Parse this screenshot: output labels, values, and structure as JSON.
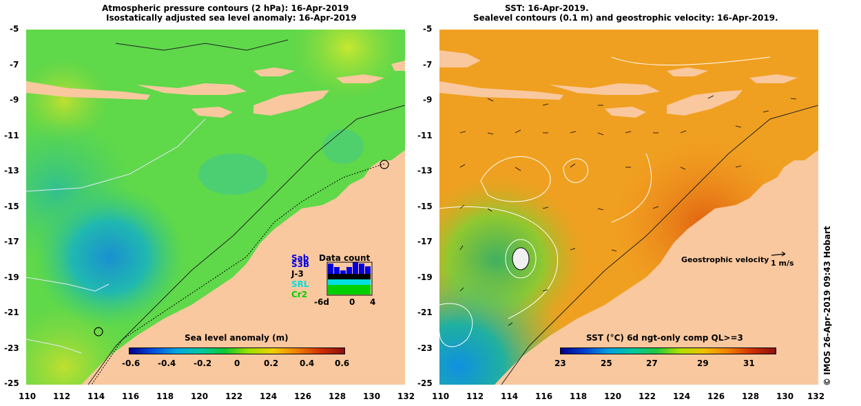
{
  "left_panel": {
    "title_line1": "Atmospheric pressure contours (2 hPa): 16-Apr-2019",
    "title_line2": "Isostatically adjusted sea level anomaly: 16-Apr-2019",
    "colorbar_label": "Sea level anomaly (m)",
    "colorbar_ticks": [
      "-0.6",
      "-0.4",
      "-0.2",
      "0",
      "0.2",
      "0.4",
      "0.6"
    ],
    "colorbar_colors": [
      "#00008b",
      "#0050e0",
      "#00a8e0",
      "#00c8a0",
      "#10c830",
      "#a0e000",
      "#f0d000",
      "#f08000",
      "#d03000",
      "#8b1010"
    ],
    "data_count": {
      "title": "Data count",
      "satellites": [
        "Sab",
        "S3B",
        "J-3",
        "SRL",
        "Cr2"
      ],
      "satellite_colors": [
        "#0000dd",
        "#0000dd",
        "#000000",
        "#00e0e0",
        "#00d000"
      ],
      "axis_labels": [
        "-6d",
        "0",
        "4"
      ]
    }
  },
  "right_panel": {
    "title_line1": "SST: 16-Apr-2019.",
    "title_line2": "Sealevel contours (0.1 m) and geostrophic velocity: 16-Apr-2019.",
    "colorbar_label": "SST (°C) 6d ngt-only comp QL>=3",
    "colorbar_ticks": [
      "23",
      "25",
      "27",
      "29",
      "31"
    ],
    "colorbar_colors": [
      "#00008b",
      "#0040d0",
      "#00a0e0",
      "#00c8a0",
      "#20c840",
      "#b0e000",
      "#f0c000",
      "#f08000",
      "#d03000",
      "#8b1010"
    ],
    "velocity_label": "Geostrophic velocity",
    "velocity_scale": "1 m/s",
    "credit": "© IMOS 26-Apr-2019 09:43 Hobart"
  },
  "axes": {
    "y_ticks": [
      "-5",
      "-7",
      "-9",
      "-11",
      "-13",
      "-15",
      "-17",
      "-19",
      "-21",
      "-23",
      "-25"
    ],
    "x_ticks": [
      "110",
      "112",
      "114",
      "116",
      "118",
      "120",
      "122",
      "124",
      "126",
      "128",
      "130",
      "132"
    ]
  },
  "colors": {
    "land": "#f9c89f",
    "ocean_left": "#5fd84a",
    "ocean_right": "#f0a020"
  }
}
